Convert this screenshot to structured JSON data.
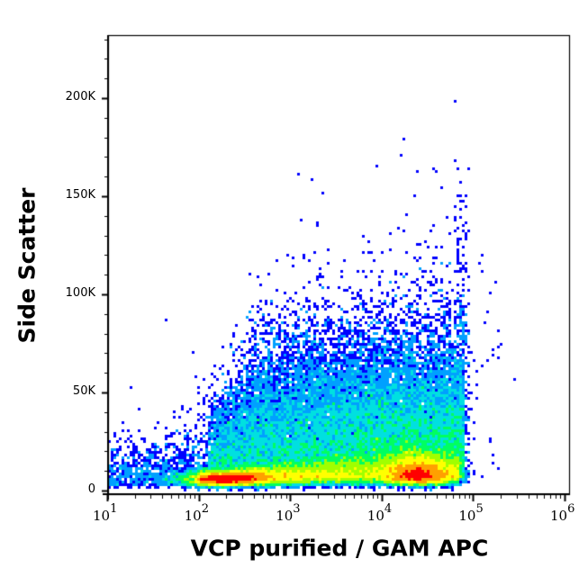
{
  "chart_data": {
    "type": "scatter",
    "subtype": "flow-cytometry-density-dot-plot",
    "title": "",
    "xlabel": "VCP purified / GAM APC",
    "ylabel": "Side Scatter",
    "x_scale": "log",
    "xlim": [
      7,
      1100000
    ],
    "ylim": [
      -2000,
      232000
    ],
    "x_ticks": [
      {
        "value": 10,
        "label": "10",
        "exp": "1"
      },
      {
        "value": 100,
        "label": "10",
        "exp": "2"
      },
      {
        "value": 1000,
        "label": "10",
        "exp": "3"
      },
      {
        "value": 10000,
        "label": "10",
        "exp": "4"
      },
      {
        "value": 100000,
        "label": "10",
        "exp": "5"
      },
      {
        "value": 1000000,
        "label": "10",
        "exp": "6"
      }
    ],
    "y_ticks": [
      {
        "value": 0,
        "label": "0"
      },
      {
        "value": 50000,
        "label": "50K"
      },
      {
        "value": 100000,
        "label": "100K"
      },
      {
        "value": 150000,
        "label": "150K"
      },
      {
        "value": 200000,
        "label": "200K"
      }
    ],
    "grid": false,
    "legend": null,
    "colormap": [
      "#0000ff",
      "#00a0ff",
      "#00e0e0",
      "#00ff60",
      "#a0ff00",
      "#ffff00",
      "#ffa000",
      "#ff0000"
    ],
    "populations": [
      {
        "name": "main-low-ssc-band",
        "x_log_range": [
          1.8,
          4.9
        ],
        "y_center": 8000,
        "y_spread": 7000,
        "weight": 0.55,
        "peak_x_log": [
          2.3,
          4.4
        ]
      },
      {
        "name": "upper-diffuse-cloud",
        "x_log_range": [
          2.0,
          4.9
        ],
        "y_center": 35000,
        "y_spread": 25000,
        "weight": 0.4
      },
      {
        "name": "sparse-outliers",
        "x_log_range": [
          0.9,
          5.5
        ],
        "y_center": 80000,
        "y_spread": 50000,
        "weight": 0.05
      }
    ],
    "annotations": []
  }
}
